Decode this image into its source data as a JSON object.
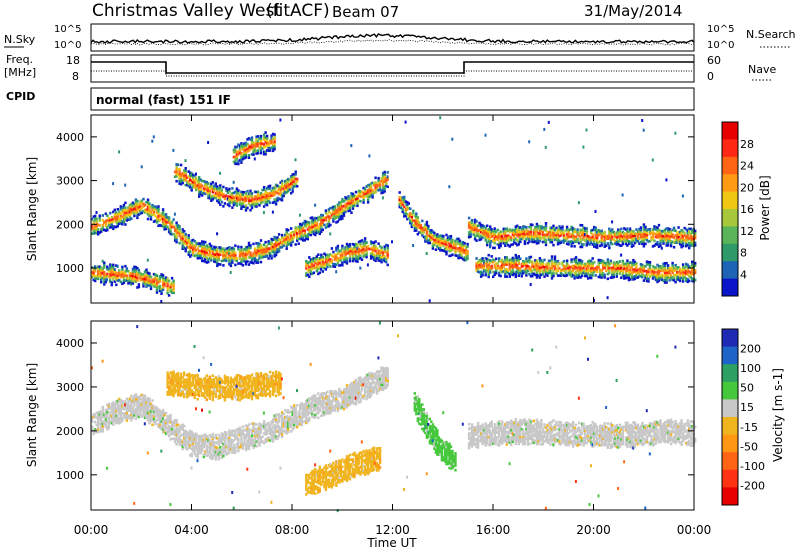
{
  "header": {
    "station": "Christmas Valley West",
    "mode": "(fitACF)",
    "beam": "Beam 07",
    "date": "31/May/2014"
  },
  "strip_panels": {
    "noise": {
      "left_label": "N.Sky",
      "right_label": "N.Search",
      "left_ticks": [
        "10^5",
        "10^0"
      ],
      "right_ticks": [
        "10^5",
        "10^0"
      ]
    },
    "frequency": {
      "left_label_line1": "Freq.",
      "left_label_line2": "[MHz]",
      "right_label": "Nave",
      "left_ticks": [
        "18",
        "8"
      ],
      "right_ticks": [
        "60",
        "0"
      ]
    },
    "cpid": {
      "label": "CPID",
      "text": "normal (fast) 151 IF"
    }
  },
  "colors": {
    "power_scale": [
      "#0a14c8",
      "#1e64b4",
      "#2e9a6a",
      "#5ab45a",
      "#a8c83c",
      "#f0c814",
      "#ff9a14",
      "#ff6414",
      "#ff2814",
      "#e60000"
    ],
    "velocity_scale": [
      "#1e2ab4",
      "#1e64c8",
      "#2ea064",
      "#46c83c",
      "#c8c8c8",
      "#f0b41e",
      "#ff9614",
      "#ff6414",
      "#ff3214",
      "#e60000"
    ],
    "nosky_line": "#000000"
  },
  "chart_data": [
    {
      "type": "heatmap",
      "panel": "power",
      "ylabel": "Slant Range [km]",
      "yticks": [
        "1000",
        "2000",
        "3000",
        "4000"
      ],
      "ylim": [
        200,
        4500
      ],
      "xlim": [
        "00:00",
        "24:00"
      ],
      "colorbar_label": "Power [dB]",
      "colorbar_ticks": [
        "4",
        "8",
        "12",
        "16",
        "20",
        "24",
        "28"
      ],
      "colorbar_range": [
        0,
        32
      ],
      "bands": [
        {
          "name": "lower_echo_a",
          "t": [
            0.0,
            0.8,
            1.6,
            2.5,
            3.3
          ],
          "r": [
            900,
            860,
            820,
            700,
            560
          ]
        },
        {
          "name": "main_band",
          "t": [
            0.0,
            1.0,
            2.0,
            3.0,
            4.0,
            5.0,
            6.0,
            7.0,
            8.0,
            9.0,
            10.0,
            11.0,
            11.8
          ],
          "r": [
            1950,
            2150,
            2450,
            2050,
            1450,
            1300,
            1300,
            1420,
            1750,
            2000,
            2400,
            2750,
            3050
          ]
        },
        {
          "name": "upper_arc",
          "t": [
            3.3,
            4.2,
            5.2,
            6.3,
            7.3,
            8.2
          ],
          "r": [
            3250,
            2900,
            2650,
            2550,
            2700,
            3050
          ]
        },
        {
          "name": "sporadic_high",
          "t": [
            5.6,
            6.4,
            7.3
          ],
          "r": [
            3550,
            3800,
            3900
          ]
        },
        {
          "name": "afternoon_low",
          "t": [
            8.5,
            9.3,
            10.2,
            11.0,
            11.8
          ],
          "r": [
            1000,
            1150,
            1350,
            1450,
            1300
          ]
        },
        {
          "name": "late_high",
          "t": [
            12.2,
            12.8,
            13.6,
            14.6,
            15.0
          ],
          "r": [
            2600,
            2100,
            1650,
            1450,
            1350
          ]
        },
        {
          "name": "night_upper",
          "t": [
            15.0,
            16.0,
            17.5,
            19.0,
            20.5,
            22.0,
            24.0
          ],
          "r": [
            1950,
            1700,
            1800,
            1750,
            1700,
            1750,
            1700
          ]
        },
        {
          "name": "night_lower",
          "t": [
            15.3,
            17.0,
            19.0,
            21.0,
            22.5,
            24.0
          ],
          "r": [
            1050,
            1050,
            1000,
            1000,
            900,
            900
          ]
        }
      ]
    },
    {
      "type": "heatmap",
      "panel": "velocity",
      "ylabel": "Slant Range [km]",
      "yticks": [
        "1000",
        "2000",
        "3000",
        "4000"
      ],
      "ylim": [
        200,
        4500
      ],
      "xlim": [
        "00:00",
        "24:00"
      ],
      "xticks": [
        "00:00",
        "04:00",
        "08:00",
        "12:00",
        "16:00",
        "20:00",
        "00:00"
      ],
      "xlabel": "Time UT",
      "colorbar_label": "Velocity [m s-1]",
      "colorbar_ticks": [
        "200",
        "100",
        "50",
        "15",
        "-15",
        "-50",
        "-100",
        "-200"
      ],
      "colorbar_range": [
        -250,
        250
      ],
      "bands": [
        {
          "name": "morning_grey",
          "t": [
            0.0,
            1.0,
            2.0,
            3.0,
            4.0,
            5.0,
            6.0,
            7.0,
            8.0,
            9.0,
            10.0,
            11.0,
            11.8
          ],
          "r": [
            2150,
            2450,
            2600,
            2150,
            1700,
            1650,
            1850,
            2000,
            2300,
            2600,
            2750,
            3050,
            3250
          ],
          "velocity": "-15 to 15"
        },
        {
          "name": "westward_flow",
          "t": [
            3.0,
            4.5,
            6.0,
            7.5
          ],
          "r": [
            3100,
            3000,
            3000,
            3100
          ],
          "velocity": "-50"
        },
        {
          "name": "orange_low",
          "t": [
            8.5,
            9.5,
            10.5,
            11.5
          ],
          "r": [
            800,
            1000,
            1250,
            1400
          ],
          "velocity": "-50"
        },
        {
          "name": "green_streak",
          "t": [
            12.8,
            13.3,
            13.9,
            14.5
          ],
          "r": [
            2700,
            2150,
            1600,
            1300
          ],
          "velocity": "50"
        },
        {
          "name": "night_grey",
          "t": [
            15.0,
            17.0,
            19.0,
            21.0,
            23.0,
            24.0
          ],
          "r": [
            1900,
            2000,
            1950,
            1900,
            2000,
            1950
          ],
          "velocity": "-15 to 15"
        }
      ]
    }
  ],
  "x_axis": {
    "ticks": [
      "00:00",
      "04:00",
      "08:00",
      "12:00",
      "16:00",
      "20:00",
      "00:00"
    ],
    "label": "Time UT"
  }
}
